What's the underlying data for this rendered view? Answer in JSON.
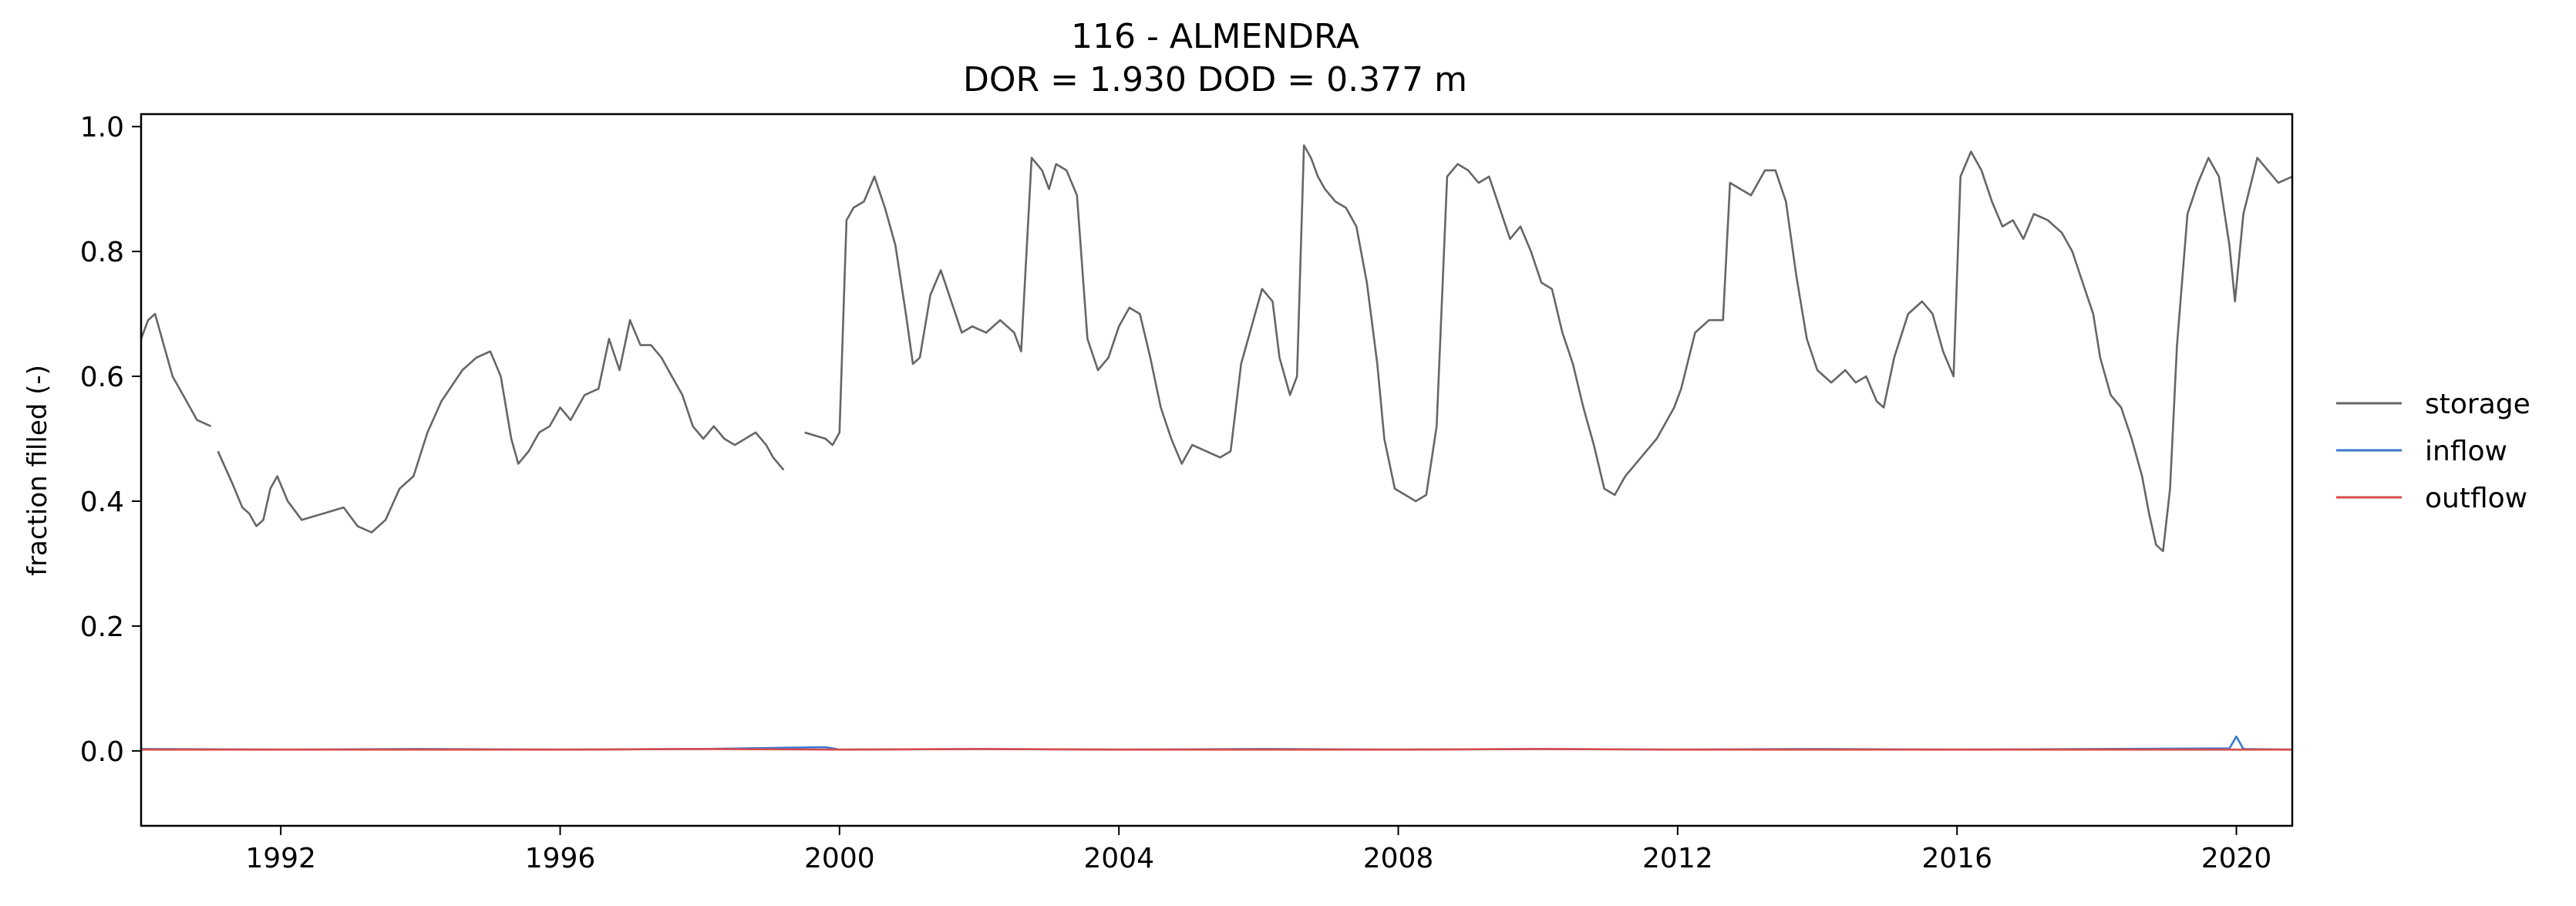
{
  "chart_data": {
    "type": "line",
    "title": "116 - ALMENDRA",
    "subtitle": "DOR = 1.930  DOD = 0.377 m",
    "xlabel": "",
    "ylabel": "fraction filled (-)",
    "xlim": [
      1990.0,
      2020.8
    ],
    "ylim": [
      -0.12,
      1.02
    ],
    "grid": false,
    "legend_position": "outside-right",
    "xticks": [
      "1992",
      "1996",
      "2000",
      "2004",
      "2008",
      "2012",
      "2016",
      "2020"
    ],
    "yticks": [
      "0.0",
      "0.2",
      "0.4",
      "0.6",
      "0.8",
      "1.0"
    ],
    "series": [
      {
        "name": "storage",
        "color": "#666666",
        "segments": [
          [
            [
              1990.0,
              0.66
            ],
            [
              1990.1,
              0.69
            ],
            [
              1990.2,
              0.7
            ],
            [
              1990.3,
              0.66
            ],
            [
              1990.45,
              0.6
            ],
            [
              1990.6,
              0.57
            ],
            [
              1990.8,
              0.53
            ],
            [
              1991.0,
              0.52
            ]
          ],
          [
            [
              1991.1,
              0.48
            ],
            [
              1991.3,
              0.43
            ],
            [
              1991.45,
              0.39
            ],
            [
              1991.55,
              0.38
            ],
            [
              1991.65,
              0.36
            ],
            [
              1991.75,
              0.37
            ],
            [
              1991.85,
              0.42
            ],
            [
              1991.95,
              0.44
            ],
            [
              1992.1,
              0.4
            ],
            [
              1992.3,
              0.37
            ],
            [
              1992.6,
              0.38
            ],
            [
              1992.9,
              0.39
            ],
            [
              1993.1,
              0.36
            ],
            [
              1993.3,
              0.35
            ],
            [
              1993.5,
              0.37
            ],
            [
              1993.7,
              0.42
            ],
            [
              1993.9,
              0.44
            ],
            [
              1994.1,
              0.51
            ],
            [
              1994.3,
              0.56
            ],
            [
              1994.6,
              0.61
            ],
            [
              1994.8,
              0.63
            ],
            [
              1995.0,
              0.64
            ],
            [
              1995.15,
              0.6
            ],
            [
              1995.3,
              0.5
            ],
            [
              1995.4,
              0.46
            ],
            [
              1995.55,
              0.48
            ],
            [
              1995.7,
              0.51
            ],
            [
              1995.85,
              0.52
            ],
            [
              1996.0,
              0.55
            ],
            [
              1996.15,
              0.53
            ],
            [
              1996.35,
              0.57
            ],
            [
              1996.55,
              0.58
            ],
            [
              1996.7,
              0.66
            ],
            [
              1996.85,
              0.61
            ],
            [
              1997.0,
              0.69
            ],
            [
              1997.15,
              0.65
            ],
            [
              1997.3,
              0.65
            ],
            [
              1997.45,
              0.63
            ],
            [
              1997.6,
              0.6
            ],
            [
              1997.75,
              0.57
            ],
            [
              1997.9,
              0.52
            ],
            [
              1998.05,
              0.5
            ],
            [
              1998.2,
              0.52
            ],
            [
              1998.35,
              0.5
            ],
            [
              1998.5,
              0.49
            ],
            [
              1998.65,
              0.5
            ],
            [
              1998.8,
              0.51
            ],
            [
              1998.95,
              0.49
            ],
            [
              1999.05,
              0.47
            ],
            [
              1999.2,
              0.45
            ]
          ],
          [
            [
              1999.5,
              0.51
            ],
            [
              1999.8,
              0.5
            ],
            [
              1999.9,
              0.49
            ],
            [
              2000.0,
              0.51
            ],
            [
              2000.1,
              0.85
            ],
            [
              2000.2,
              0.87
            ],
            [
              2000.35,
              0.88
            ],
            [
              2000.5,
              0.92
            ],
            [
              2000.65,
              0.87
            ],
            [
              2000.8,
              0.81
            ],
            [
              2000.95,
              0.7
            ],
            [
              2001.05,
              0.62
            ],
            [
              2001.15,
              0.63
            ],
            [
              2001.3,
              0.73
            ],
            [
              2001.45,
              0.77
            ],
            [
              2001.6,
              0.72
            ],
            [
              2001.75,
              0.67
            ],
            [
              2001.9,
              0.68
            ],
            [
              2002.1,
              0.67
            ],
            [
              2002.3,
              0.69
            ],
            [
              2002.5,
              0.67
            ],
            [
              2002.6,
              0.64
            ],
            [
              2002.75,
              0.95
            ],
            [
              2002.9,
              0.93
            ],
            [
              2003.0,
              0.9
            ],
            [
              2003.1,
              0.94
            ],
            [
              2003.25,
              0.93
            ],
            [
              2003.4,
              0.89
            ],
            [
              2003.55,
              0.66
            ],
            [
              2003.7,
              0.61
            ],
            [
              2003.85,
              0.63
            ],
            [
              2004.0,
              0.68
            ],
            [
              2004.15,
              0.71
            ],
            [
              2004.3,
              0.7
            ],
            [
              2004.45,
              0.63
            ],
            [
              2004.6,
              0.55
            ],
            [
              2004.75,
              0.5
            ],
            [
              2004.9,
              0.46
            ],
            [
              2005.05,
              0.49
            ],
            [
              2005.25,
              0.48
            ],
            [
              2005.45,
              0.47
            ],
            [
              2005.6,
              0.48
            ],
            [
              2005.75,
              0.62
            ],
            [
              2005.9,
              0.68
            ],
            [
              2006.05,
              0.74
            ],
            [
              2006.2,
              0.72
            ],
            [
              2006.3,
              0.63
            ],
            [
              2006.45,
              0.57
            ],
            [
              2006.55,
              0.6
            ],
            [
              2006.65,
              0.97
            ],
            [
              2006.75,
              0.95
            ],
            [
              2006.85,
              0.92
            ],
            [
              2006.95,
              0.9
            ],
            [
              2007.1,
              0.88
            ],
            [
              2007.25,
              0.87
            ],
            [
              2007.4,
              0.84
            ],
            [
              2007.55,
              0.75
            ],
            [
              2007.7,
              0.62
            ],
            [
              2007.8,
              0.5
            ],
            [
              2007.95,
              0.42
            ],
            [
              2008.1,
              0.41
            ],
            [
              2008.25,
              0.4
            ],
            [
              2008.4,
              0.41
            ],
            [
              2008.55,
              0.52
            ],
            [
              2008.7,
              0.92
            ],
            [
              2008.85,
              0.94
            ],
            [
              2009.0,
              0.93
            ],
            [
              2009.15,
              0.91
            ],
            [
              2009.3,
              0.92
            ],
            [
              2009.45,
              0.87
            ],
            [
              2009.6,
              0.82
            ],
            [
              2009.75,
              0.84
            ],
            [
              2009.9,
              0.8
            ],
            [
              2010.05,
              0.75
            ],
            [
              2010.2,
              0.74
            ],
            [
              2010.35,
              0.67
            ],
            [
              2010.5,
              0.62
            ],
            [
              2010.65,
              0.55
            ],
            [
              2010.8,
              0.49
            ],
            [
              2010.95,
              0.42
            ],
            [
              2011.1,
              0.41
            ],
            [
              2011.25,
              0.44
            ],
            [
              2011.4,
              0.46
            ],
            [
              2011.55,
              0.48
            ],
            [
              2011.7,
              0.5
            ],
            [
              2011.85,
              0.53
            ],
            [
              2011.95,
              0.55
            ],
            [
              2012.05,
              0.58
            ],
            [
              2012.25,
              0.67
            ],
            [
              2012.45,
              0.69
            ],
            [
              2012.65,
              0.69
            ],
            [
              2012.75,
              0.91
            ],
            [
              2012.9,
              0.9
            ],
            [
              2013.05,
              0.89
            ],
            [
              2013.25,
              0.93
            ],
            [
              2013.4,
              0.93
            ],
            [
              2013.55,
              0.88
            ],
            [
              2013.7,
              0.76
            ],
            [
              2013.85,
              0.66
            ],
            [
              2014.0,
              0.61
            ],
            [
              2014.2,
              0.59
            ],
            [
              2014.4,
              0.61
            ],
            [
              2014.55,
              0.59
            ],
            [
              2014.7,
              0.6
            ],
            [
              2014.85,
              0.56
            ],
            [
              2014.95,
              0.55
            ],
            [
              2015.1,
              0.63
            ],
            [
              2015.3,
              0.7
            ],
            [
              2015.5,
              0.72
            ],
            [
              2015.65,
              0.7
            ],
            [
              2015.8,
              0.64
            ],
            [
              2015.95,
              0.6
            ],
            [
              2016.05,
              0.92
            ],
            [
              2016.2,
              0.96
            ],
            [
              2016.35,
              0.93
            ],
            [
              2016.5,
              0.88
            ],
            [
              2016.65,
              0.84
            ],
            [
              2016.8,
              0.85
            ],
            [
              2016.95,
              0.82
            ],
            [
              2017.1,
              0.86
            ],
            [
              2017.3,
              0.85
            ],
            [
              2017.5,
              0.83
            ],
            [
              2017.65,
              0.8
            ],
            [
              2017.8,
              0.75
            ],
            [
              2017.95,
              0.7
            ],
            [
              2018.05,
              0.63
            ],
            [
              2018.2,
              0.57
            ],
            [
              2018.35,
              0.55
            ],
            [
              2018.5,
              0.5
            ],
            [
              2018.65,
              0.44
            ],
            [
              2018.75,
              0.38
            ],
            [
              2018.85,
              0.33
            ],
            [
              2018.95,
              0.32
            ],
            [
              2019.05,
              0.42
            ],
            [
              2019.15,
              0.65
            ],
            [
              2019.3,
              0.86
            ],
            [
              2019.45,
              0.91
            ],
            [
              2019.6,
              0.95
            ],
            [
              2019.75,
              0.92
            ],
            [
              2019.9,
              0.81
            ],
            [
              2019.98,
              0.72
            ],
            [
              2020.1,
              0.86
            ],
            [
              2020.3,
              0.95
            ],
            [
              2020.45,
              0.93
            ],
            [
              2020.6,
              0.91
            ],
            [
              2020.8,
              0.92
            ]
          ]
        ]
      },
      {
        "name": "inflow",
        "color": "#3a78d0",
        "segments": [
          [
            [
              1990.0,
              0.003
            ],
            [
              1992.0,
              0.002
            ],
            [
              1994.0,
              0.003
            ],
            [
              1996.0,
              0.002
            ],
            [
              1998.0,
              0.003
            ],
            [
              1999.8,
              0.006
            ],
            [
              2000.0,
              0.002
            ],
            [
              2002.0,
              0.003
            ],
            [
              2004.0,
              0.002
            ],
            [
              2006.0,
              0.003
            ],
            [
              2008.0,
              0.002
            ],
            [
              2010.0,
              0.003
            ],
            [
              2012.0,
              0.002
            ],
            [
              2014.0,
              0.003
            ],
            [
              2016.0,
              0.002
            ],
            [
              2018.0,
              0.003
            ],
            [
              2019.9,
              0.004
            ],
            [
              2020.0,
              0.023
            ],
            [
              2020.1,
              0.003
            ],
            [
              2020.8,
              0.002
            ]
          ]
        ]
      },
      {
        "name": "outflow",
        "color": "#d94a4a",
        "segments": [
          [
            [
              1990.0,
              0.002
            ],
            [
              1992.0,
              0.002
            ],
            [
              1994.0,
              0.002
            ],
            [
              1996.0,
              0.002
            ],
            [
              1998.0,
              0.003
            ],
            [
              2000.0,
              0.002
            ],
            [
              2002.0,
              0.003
            ],
            [
              2004.0,
              0.002
            ],
            [
              2006.0,
              0.002
            ],
            [
              2008.0,
              0.002
            ],
            [
              2010.0,
              0.003
            ],
            [
              2012.0,
              0.002
            ],
            [
              2014.0,
              0.002
            ],
            [
              2016.0,
              0.002
            ],
            [
              2018.0,
              0.002
            ],
            [
              2020.0,
              0.002
            ],
            [
              2020.8,
              0.002
            ]
          ]
        ]
      }
    ]
  }
}
